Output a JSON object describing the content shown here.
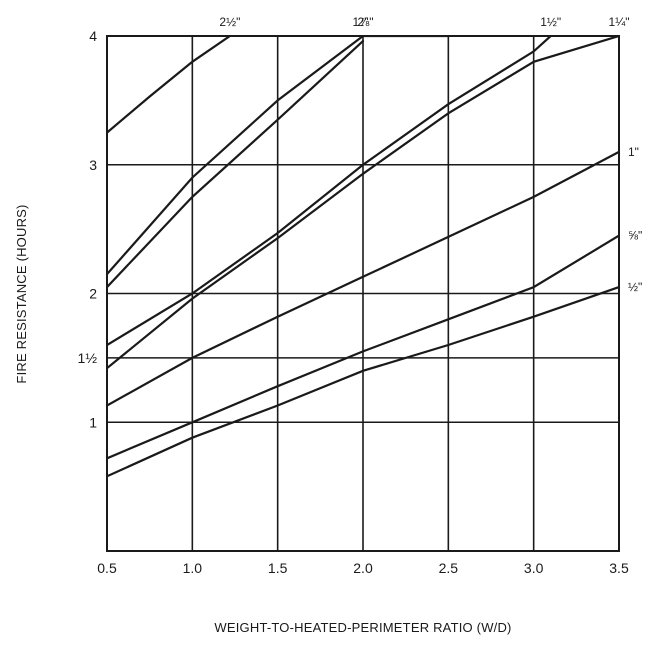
{
  "chart_data": {
    "type": "line",
    "xlabel": "WEIGHT-TO-HEATED-PERIMETER RATIO (W/D)",
    "ylabel": "FIRE RESISTANCE (HOURS)",
    "xlim": [
      0.5,
      3.5
    ],
    "ylim": [
      0,
      4
    ],
    "x_ticks": [
      {
        "value": 0.5,
        "label": "0.5"
      },
      {
        "value": 1.0,
        "label": "1.0"
      },
      {
        "value": 1.5,
        "label": "1.5"
      },
      {
        "value": 2.0,
        "label": "2.0"
      },
      {
        "value": 2.5,
        "label": "2.5"
      },
      {
        "value": 3.0,
        "label": "3.0"
      },
      {
        "value": 3.5,
        "label": "3.5"
      }
    ],
    "y_ticks": [
      {
        "value": 1,
        "label": "1"
      },
      {
        "value": 1.5,
        "label": "1½"
      },
      {
        "value": 2,
        "label": "2"
      },
      {
        "value": 3,
        "label": "3"
      },
      {
        "value": 4,
        "label": "4"
      }
    ],
    "grid": true,
    "series": [
      {
        "name": "2½\"",
        "label_position": "top",
        "x": [
          0.5,
          0.75,
          1.0,
          1.22
        ],
        "y": [
          3.25,
          3.53,
          3.8,
          4.0
        ]
      },
      {
        "name": "2\"",
        "label_position": "top",
        "x": [
          0.5,
          1.0,
          1.5,
          2.0,
          2.5
        ],
        "y": [
          2.15,
          2.9,
          3.5,
          4.0,
          4.0
        ]
      },
      {
        "name": "1⅞\"",
        "label_position": "top",
        "x": [
          0.5,
          1.0,
          1.5,
          2.0
        ],
        "y": [
          2.05,
          2.75,
          3.35,
          3.96
        ]
      },
      {
        "name": "1½\"",
        "label_position": "top",
        "x": [
          0.5,
          1.0,
          1.5,
          2.0,
          2.5,
          3.0,
          3.1
        ],
        "y": [
          1.6,
          2.0,
          2.47,
          3.0,
          3.47,
          3.88,
          4.0
        ]
      },
      {
        "name": "1¼\"",
        "label_position": "top",
        "x": [
          0.5,
          1.0,
          1.5,
          2.0,
          2.5,
          3.0,
          3.5
        ],
        "y": [
          1.42,
          1.96,
          2.43,
          2.93,
          3.4,
          3.8,
          4.0
        ]
      },
      {
        "name": "1\"",
        "label_position": "right",
        "x": [
          0.5,
          1.0,
          1.5,
          2.0,
          2.5,
          3.0,
          3.5
        ],
        "y": [
          1.13,
          1.5,
          1.82,
          2.13,
          2.44,
          2.75,
          3.1
        ]
      },
      {
        "name": "⅝\"",
        "label_position": "right",
        "x": [
          0.5,
          1.0,
          1.5,
          2.0,
          2.5,
          3.0,
          3.5
        ],
        "y": [
          0.72,
          1.0,
          1.28,
          1.55,
          1.8,
          2.05,
          2.45
        ]
      },
      {
        "name": "½\"",
        "label_position": "right",
        "x": [
          0.5,
          1.0,
          1.5,
          2.0,
          2.5,
          3.0,
          3.5
        ],
        "y": [
          0.58,
          0.88,
          1.13,
          1.4,
          1.6,
          1.82,
          2.05
        ]
      }
    ]
  }
}
